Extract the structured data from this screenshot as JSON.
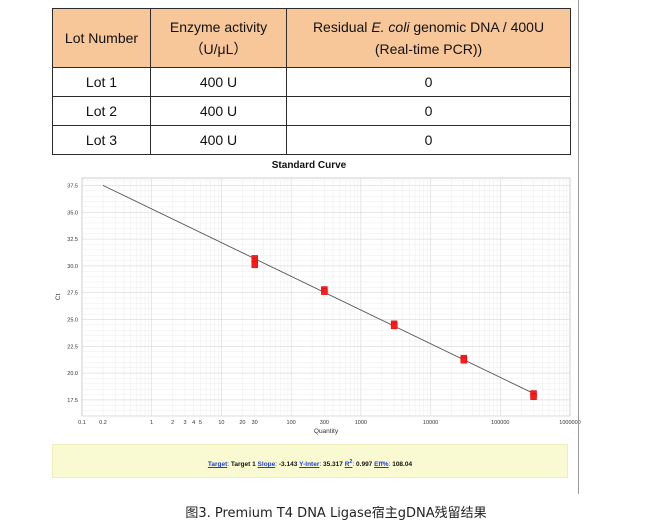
{
  "table": {
    "headers": [
      {
        "line1": "Lot Number",
        "line2": ""
      },
      {
        "line1": "Enzyme activity",
        "line2": "（U/μL）"
      },
      {
        "line1_pre": "Residual ",
        "line1_em": "E. coli",
        "line1_post": " genomic DNA / 400U",
        "line2": "(Real-time PCR))"
      }
    ],
    "rows": [
      {
        "lot": "Lot 1",
        "activity": "400 U",
        "residual": "0"
      },
      {
        "lot": "Lot 2",
        "activity": "400 U",
        "residual": "0"
      },
      {
        "lot": "Lot 3",
        "activity": "400 U",
        "residual": "0"
      }
    ]
  },
  "chart_data": {
    "type": "scatter",
    "title": "Standard Curve",
    "xlabel": "Quantity",
    "ylabel": "Ct",
    "x_scale": "log",
    "xlim": [
      0.1,
      1000000
    ],
    "ylim": [
      16.0,
      38.2
    ],
    "x_tick_labels": [
      "0.1",
      "0.2",
      "1",
      "2",
      "3",
      "4",
      "5",
      "10",
      "20",
      "30",
      "100",
      "300",
      "1000",
      "10000",
      "100000",
      "1000000"
    ],
    "y_ticks": [
      "37.5",
      "35.0",
      "32.5",
      "30.0",
      "27.5",
      "25.0",
      "22.5",
      "20.0",
      "17.5"
    ],
    "grid": true,
    "points": [
      {
        "x": 30,
        "y": 30.7
      },
      {
        "x": 30,
        "y": 30.4
      },
      {
        "x": 30,
        "y": 30.1
      },
      {
        "x": 300,
        "y": 27.8
      },
      {
        "x": 300,
        "y": 27.6
      },
      {
        "x": 3000,
        "y": 24.6
      },
      {
        "x": 3000,
        "y": 24.4
      },
      {
        "x": 30000,
        "y": 21.4
      },
      {
        "x": 30000,
        "y": 21.2
      },
      {
        "x": 300000,
        "y": 18.1
      },
      {
        "x": 300000,
        "y": 17.8
      }
    ],
    "fit_line": {
      "slope": -3.143,
      "intercept": 35.317,
      "x_range": [
        0.2,
        300000
      ]
    },
    "point_color": "#ff1a1a",
    "line_color": "#555555"
  },
  "stats": {
    "target_label": "Target",
    "target_value": "Target 1",
    "slope_label": "Slope",
    "slope_value": "-3.143",
    "yinter_label": "Y-Inter",
    "yinter_value": "35.317",
    "r2_label": "R",
    "r2_sup": "2",
    "r2_value": "0.997",
    "eff_label": "Eff%",
    "eff_value": "108.04"
  },
  "caption": "图3. Premium T4 DNA Ligase宿主gDNA残留结果"
}
